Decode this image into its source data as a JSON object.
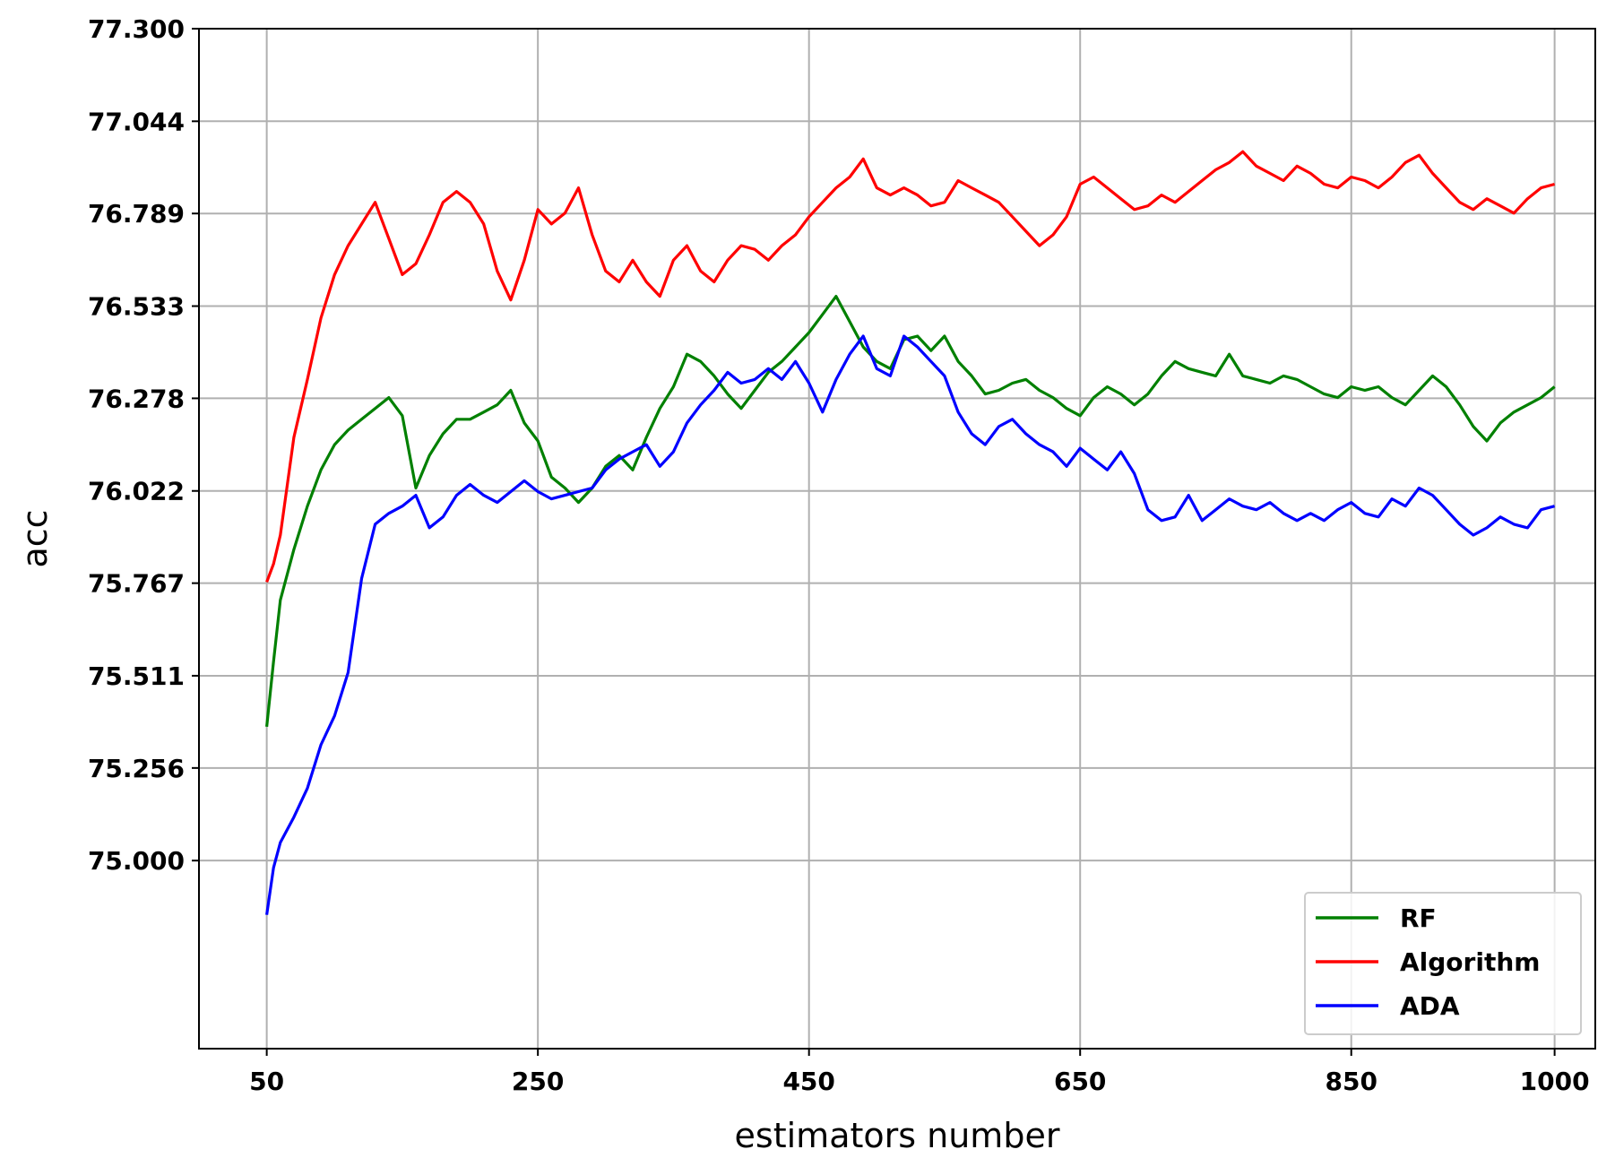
{
  "chart_data": {
    "type": "line",
    "title": "",
    "xlabel": "estimators number",
    "ylabel": "acc",
    "xlim": [
      0,
      1030
    ],
    "ylim": [
      74.48,
      77.3
    ],
    "x_ticks": [
      50,
      250,
      450,
      650,
      850,
      1000
    ],
    "y_ticks": [
      75.0,
      75.256,
      75.511,
      75.767,
      76.022,
      76.278,
      76.533,
      76.789,
      77.044,
      77.3
    ],
    "y_tick_labels": [
      "75.000",
      "75.256",
      "75.511",
      "75.767",
      "76.022",
      "76.278",
      "76.533",
      "76.789",
      "77.044",
      "77.300"
    ],
    "grid": true,
    "legend_position": "lower right",
    "series": [
      {
        "name": "RF",
        "color": "#008000",
        "x": [
          50,
          55,
          60,
          70,
          80,
          90,
          100,
          110,
          120,
          130,
          140,
          150,
          160,
          170,
          180,
          190,
          200,
          210,
          220,
          230,
          240,
          250,
          260,
          270,
          280,
          290,
          300,
          310,
          320,
          330,
          340,
          350,
          360,
          370,
          380,
          390,
          400,
          410,
          420,
          430,
          440,
          450,
          460,
          470,
          480,
          490,
          500,
          510,
          520,
          530,
          540,
          550,
          560,
          570,
          580,
          590,
          600,
          610,
          620,
          630,
          640,
          650,
          660,
          670,
          680,
          690,
          700,
          710,
          720,
          730,
          740,
          750,
          760,
          770,
          780,
          790,
          800,
          810,
          820,
          830,
          840,
          850,
          860,
          870,
          880,
          890,
          900,
          910,
          920,
          930,
          940,
          950,
          960,
          970,
          980,
          990,
          1000
        ],
        "values": [
          75.37,
          75.55,
          75.72,
          75.86,
          75.98,
          76.08,
          76.15,
          76.19,
          76.22,
          76.25,
          76.28,
          76.23,
          76.03,
          76.12,
          76.18,
          76.22,
          76.22,
          76.24,
          76.26,
          76.3,
          76.21,
          76.16,
          76.06,
          76.03,
          75.99,
          76.03,
          76.09,
          76.12,
          76.08,
          76.17,
          76.25,
          76.31,
          76.4,
          76.38,
          76.34,
          76.29,
          76.25,
          76.3,
          76.35,
          76.38,
          76.42,
          76.46,
          76.51,
          76.56,
          76.49,
          76.42,
          76.38,
          76.36,
          76.44,
          76.45,
          76.41,
          76.45,
          76.38,
          76.34,
          76.29,
          76.3,
          76.32,
          76.33,
          76.3,
          76.28,
          76.25,
          76.23,
          76.28,
          76.31,
          76.29,
          76.26,
          76.29,
          76.34,
          76.38,
          76.36,
          76.35,
          76.34,
          76.4,
          76.34,
          76.33,
          76.32,
          76.34,
          76.33,
          76.31,
          76.29,
          76.28,
          76.31,
          76.3,
          76.31,
          76.28,
          76.26,
          76.3,
          76.34,
          76.31,
          76.26,
          76.2,
          76.16,
          76.21,
          76.24,
          76.26,
          76.28,
          76.31
        ]
      },
      {
        "name": "Algorithm",
        "color": "#ff0000",
        "x": [
          50,
          55,
          60,
          70,
          80,
          90,
          100,
          110,
          120,
          130,
          140,
          150,
          160,
          170,
          180,
          190,
          200,
          210,
          220,
          230,
          240,
          250,
          260,
          270,
          280,
          290,
          300,
          310,
          320,
          330,
          340,
          350,
          360,
          370,
          380,
          390,
          400,
          410,
          420,
          430,
          440,
          450,
          460,
          470,
          480,
          490,
          500,
          510,
          520,
          530,
          540,
          550,
          560,
          570,
          580,
          590,
          600,
          610,
          620,
          630,
          640,
          650,
          660,
          670,
          680,
          690,
          700,
          710,
          720,
          730,
          740,
          750,
          760,
          770,
          780,
          790,
          800,
          810,
          820,
          830,
          840,
          850,
          860,
          870,
          880,
          890,
          900,
          910,
          920,
          930,
          940,
          950,
          960,
          970,
          980,
          990,
          1000
        ],
        "values": [
          75.77,
          75.82,
          75.9,
          76.17,
          76.33,
          76.5,
          76.62,
          76.7,
          76.76,
          76.82,
          76.72,
          76.62,
          76.65,
          76.73,
          76.82,
          76.85,
          76.82,
          76.76,
          76.63,
          76.55,
          76.66,
          76.8,
          76.76,
          76.79,
          76.86,
          76.73,
          76.63,
          76.6,
          76.66,
          76.6,
          76.56,
          76.66,
          76.7,
          76.63,
          76.6,
          76.66,
          76.7,
          76.69,
          76.66,
          76.7,
          76.73,
          76.78,
          76.82,
          76.86,
          76.89,
          76.94,
          76.86,
          76.84,
          76.86,
          76.84,
          76.81,
          76.82,
          76.88,
          76.86,
          76.84,
          76.82,
          76.78,
          76.74,
          76.7,
          76.73,
          76.78,
          76.87,
          76.89,
          76.86,
          76.83,
          76.8,
          76.81,
          76.84,
          76.82,
          76.85,
          76.88,
          76.91,
          76.93,
          76.96,
          76.92,
          76.9,
          76.88,
          76.92,
          76.9,
          76.87,
          76.86,
          76.89,
          76.88,
          76.86,
          76.89,
          76.93,
          76.95,
          76.9,
          76.86,
          76.82,
          76.8,
          76.83,
          76.81,
          76.79,
          76.83,
          76.86,
          76.87
        ]
      },
      {
        "name": "ADA",
        "color": "#0000ff",
        "x": [
          50,
          55,
          60,
          70,
          80,
          90,
          100,
          110,
          120,
          130,
          140,
          150,
          160,
          170,
          180,
          190,
          200,
          210,
          220,
          230,
          240,
          250,
          260,
          270,
          280,
          290,
          300,
          310,
          320,
          330,
          340,
          350,
          360,
          370,
          380,
          390,
          400,
          410,
          420,
          430,
          440,
          450,
          460,
          470,
          480,
          490,
          500,
          510,
          520,
          530,
          540,
          550,
          560,
          570,
          580,
          590,
          600,
          610,
          620,
          630,
          640,
          650,
          660,
          670,
          680,
          690,
          700,
          710,
          720,
          730,
          740,
          750,
          760,
          770,
          780,
          790,
          800,
          810,
          820,
          830,
          840,
          850,
          860,
          870,
          880,
          890,
          900,
          910,
          920,
          930,
          940,
          950,
          960,
          970,
          980,
          990,
          1000
        ],
        "values": [
          74.85,
          74.98,
          75.05,
          75.12,
          75.2,
          75.32,
          75.4,
          75.52,
          75.78,
          75.93,
          75.96,
          75.98,
          76.01,
          75.92,
          75.95,
          76.01,
          76.04,
          76.01,
          75.99,
          76.02,
          76.05,
          76.02,
          76.0,
          76.01,
          76.02,
          76.03,
          76.08,
          76.11,
          76.13,
          76.15,
          76.09,
          76.13,
          76.21,
          76.26,
          76.3,
          76.35,
          76.32,
          76.33,
          76.36,
          76.33,
          76.38,
          76.32,
          76.24,
          76.33,
          76.4,
          76.45,
          76.36,
          76.34,
          76.45,
          76.42,
          76.38,
          76.34,
          76.24,
          76.18,
          76.15,
          76.2,
          76.22,
          76.18,
          76.15,
          76.13,
          76.09,
          76.14,
          76.11,
          76.08,
          76.13,
          76.07,
          75.97,
          75.94,
          75.95,
          76.01,
          75.94,
          75.97,
          76.0,
          75.98,
          75.97,
          75.99,
          75.96,
          75.94,
          75.96,
          75.94,
          75.97,
          75.99,
          75.96,
          75.95,
          76.0,
          75.98,
          76.03,
          76.01,
          75.97,
          75.93,
          75.9,
          75.92,
          75.95,
          75.93,
          75.92,
          75.97,
          75.98
        ]
      }
    ]
  }
}
